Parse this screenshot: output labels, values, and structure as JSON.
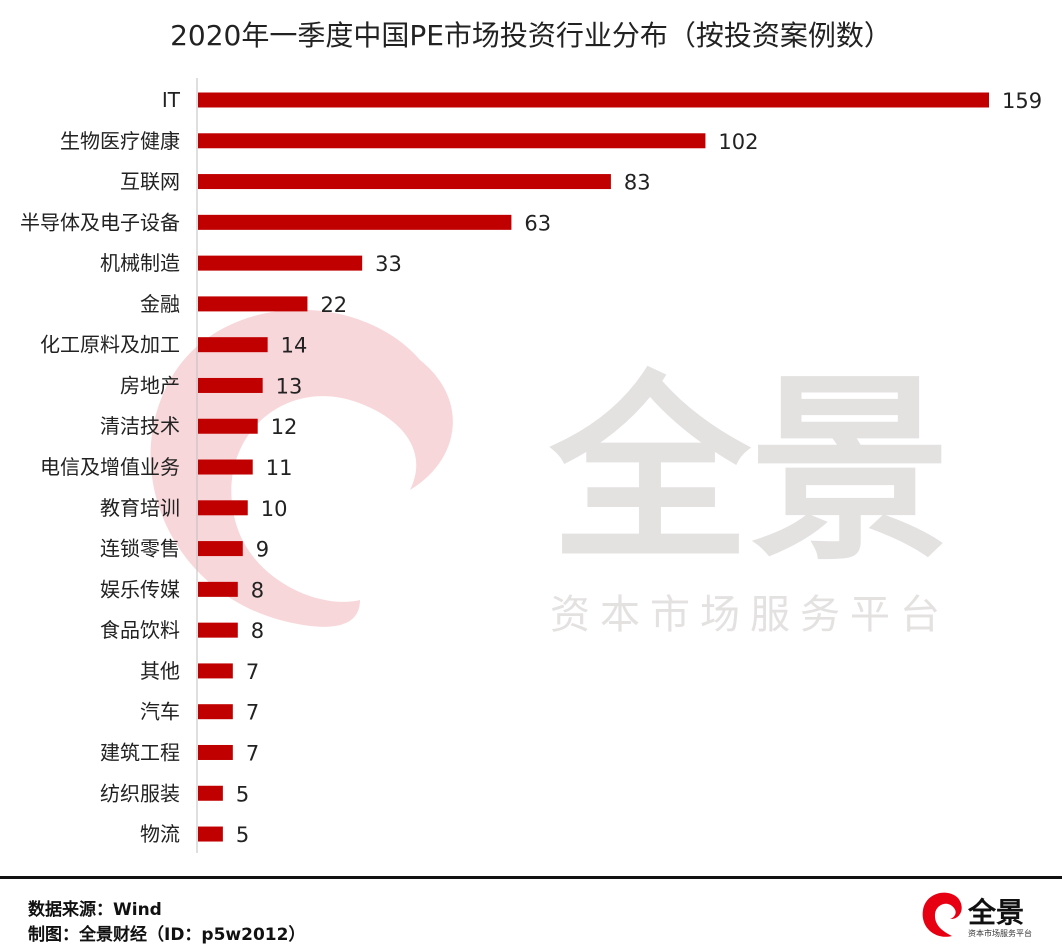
{
  "title": "2020年一季度中国PE市场投资行业分布（按投资案例数）",
  "chart_data": {
    "type": "bar",
    "orientation": "horizontal",
    "title": "2020年一季度中国PE市场投资行业分布（按投资案例数）",
    "xlabel": "",
    "ylabel": "",
    "xlim": [
      0,
      159
    ],
    "grid": false,
    "bar_color": "#c00000",
    "categories": [
      "IT",
      "生物医疗健康",
      "互联网",
      "半导体及电子设备",
      "机械制造",
      "金融",
      "化工原料及加工",
      "房地产",
      "清洁技术",
      "电信及增值业务",
      "教育培训",
      "连锁零售",
      "娱乐传媒",
      "食品饮料",
      "其他",
      "汽车",
      "建筑工程",
      "纺织服装",
      "物流"
    ],
    "values": [
      159,
      102,
      83,
      63,
      33,
      22,
      14,
      13,
      12,
      11,
      10,
      9,
      8,
      8,
      7,
      7,
      7,
      5,
      5
    ]
  },
  "footer": {
    "source": "数据来源：Wind",
    "credit": "制图：全景财经（ID：p5w2012）"
  },
  "watermark": {
    "brand": "全景",
    "tagline": "资本市场服务平台"
  }
}
